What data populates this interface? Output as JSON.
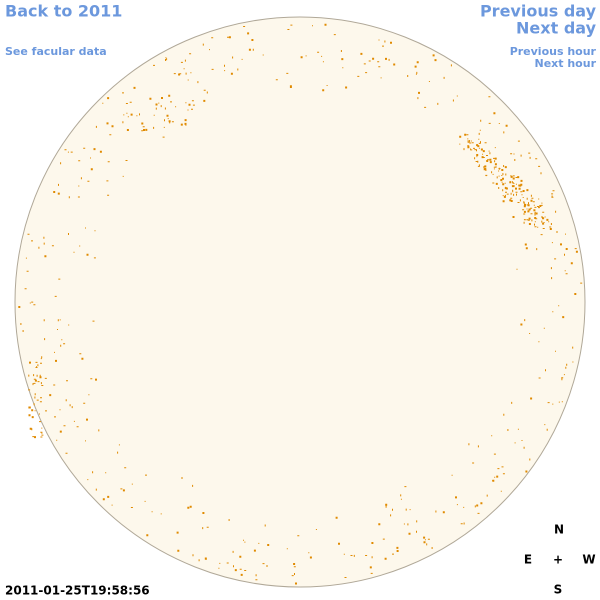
{
  "nav": {
    "back": "Back to 2011",
    "facular": "See facular data",
    "previous_day": "Previous day",
    "next_day": "Next day",
    "previous_hour": "Previous hour",
    "next_hour": "Next hour"
  },
  "timestamp": "2011-01-25T19:58:56",
  "compass": {
    "north": "N",
    "east": "E",
    "center": "+",
    "west": "W",
    "south": "S"
  }
}
